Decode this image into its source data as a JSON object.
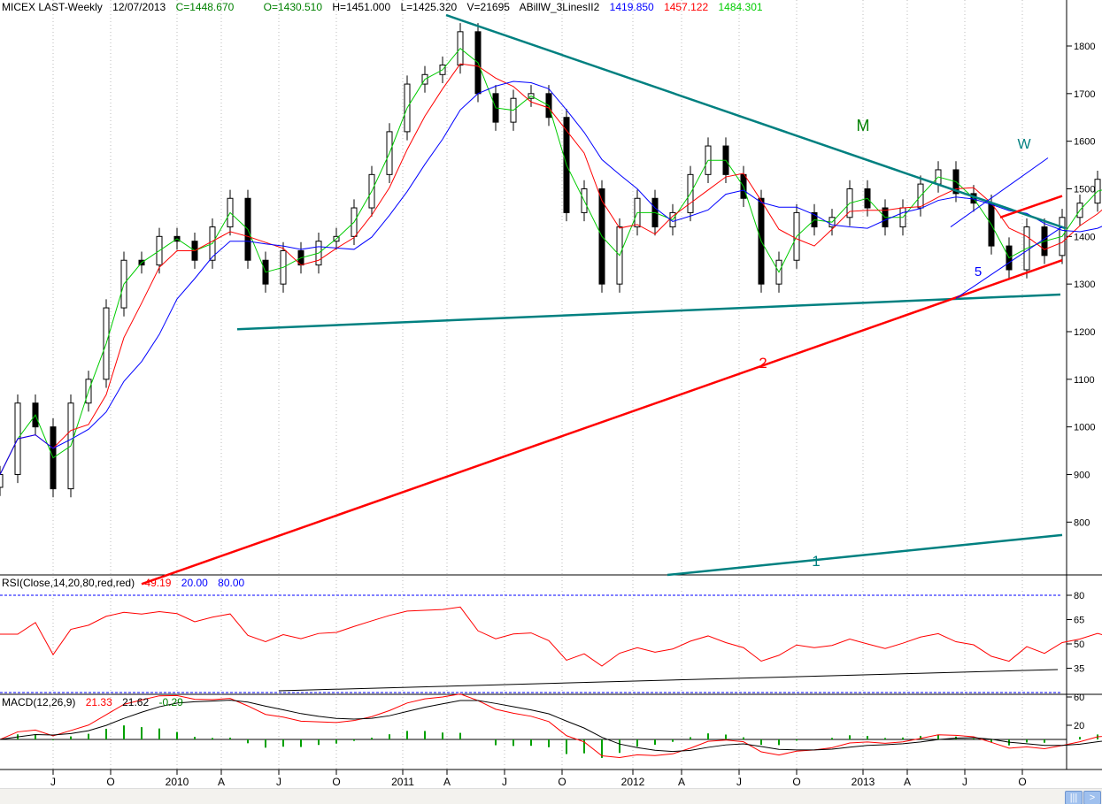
{
  "header": {
    "symbol": "MICEX LAST-Weekly",
    "date": "12/07/2013",
    "close": "C=1448.670",
    "open": "O=1430.510",
    "high": "H=1451.000",
    "low": "L=1425.320",
    "volume": "V=21695",
    "indicator": "ABillW_3LinesII2",
    "ma1": "1419.850",
    "ma2": "1457.122",
    "ma3": "1484.301"
  },
  "rsi_header": {
    "label": "RSI(Close,14,20,80,red,red)",
    "value": "49.19",
    "low": "20.00",
    "high": "80.00"
  },
  "macd_header": {
    "label": "MACD(12,26,9)",
    "macd": "21.33",
    "signal": "21.62",
    "hist": "-0.29"
  },
  "colors": {
    "up": "#000000",
    "ma_fast": "#00cc00",
    "ma_mid": "#ff0000",
    "ma_slow": "#0000ff",
    "trend_teal": "#008080",
    "trend_red": "#ff0000"
  },
  "chart_data": [
    {
      "type": "candlestick",
      "title": "MICEX LAST-Weekly",
      "ylim": [
        690,
        1880
      ],
      "yticks": [
        800,
        900,
        1000,
        1100,
        1200,
        1300,
        1400,
        1500,
        1600,
        1700,
        1800
      ],
      "xticks": [
        "J",
        "O",
        "2010",
        "A",
        "J",
        "O",
        "2011",
        "A",
        "J",
        "O",
        "2012",
        "A",
        "J",
        "O",
        "2013",
        "A",
        "J",
        "O"
      ],
      "closes": [
        900,
        1050,
        1000,
        870,
        1050,
        1100,
        1250,
        1350,
        1340,
        1400,
        1390,
        1350,
        1420,
        1480,
        1350,
        1300,
        1370,
        1340,
        1390,
        1400,
        1460,
        1530,
        1620,
        1720,
        1740,
        1760,
        1830,
        1700,
        1640,
        1690,
        1700,
        1650,
        1450,
        1500,
        1300,
        1420,
        1480,
        1420,
        1450,
        1530,
        1590,
        1530,
        1480,
        1300,
        1350,
        1450,
        1420,
        1440,
        1500,
        1460,
        1420,
        1460,
        1510,
        1540,
        1490,
        1470,
        1380,
        1330,
        1420,
        1360,
        1440,
        1470,
        1520,
        1490,
        1449
      ],
      "annotations": [
        {
          "text": "M",
          "color": "#008000"
        },
        {
          "text": "W",
          "color": "#008080"
        },
        {
          "text": "2",
          "color": "#ff0000"
        },
        {
          "text": "1",
          "color": "#008080"
        },
        {
          "text": "5",
          "color": "#0000ff"
        }
      ],
      "trendlines": [
        {
          "name": "downtrend",
          "color": "#008080",
          "from": [
            25.2,
            1865
          ],
          "to": [
            60.2,
            1417
          ]
        },
        {
          "name": "support",
          "color": "#008080",
          "from": [
            13.4,
            1205
          ],
          "to": [
            59.9,
            1278
          ]
        },
        {
          "name": "line-2",
          "color": "#ff0000",
          "from": [
            8,
            670
          ],
          "to": [
            60,
            1350
          ]
        },
        {
          "name": "line-1",
          "color": "#008080",
          "from": [
            37.7,
            689
          ],
          "to": [
            60,
            773
          ]
        },
        {
          "name": "short-red",
          "color": "#ff0000",
          "from": [
            56.5,
            1440
          ],
          "to": [
            60,
            1485
          ]
        },
        {
          "name": "channel-upper",
          "color": "#0000ff",
          "from": [
            53.7,
            1420
          ],
          "to": [
            59.2,
            1565
          ]
        },
        {
          "name": "channel-lower",
          "color": "#0000ff",
          "from": [
            54,
            1270
          ],
          "to": [
            60,
            1420
          ]
        }
      ]
    },
    {
      "type": "line",
      "title": "RSI",
      "yticks": [
        80,
        65,
        50,
        35
      ],
      "levels": [
        20,
        80
      ],
      "ylim": [
        20,
        80
      ]
    },
    {
      "type": "line",
      "title": "MACD",
      "yticks": [
        60,
        20
      ]
    }
  ],
  "scrollbar": {
    "grip": "|||",
    "next": ">"
  }
}
